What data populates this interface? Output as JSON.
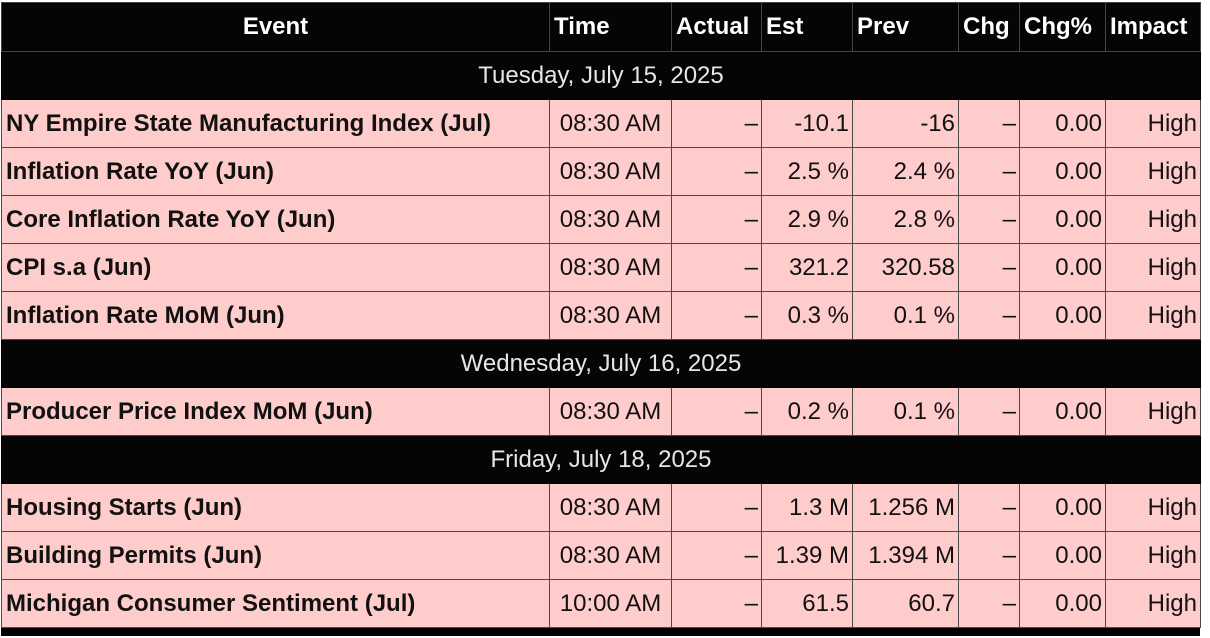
{
  "columns": {
    "event": "Event",
    "time": "Time",
    "actual": "Actual",
    "est": "Est",
    "prev": "Prev",
    "chg": "Chg",
    "chgp": "Chg%",
    "impact": "Impact"
  },
  "groups": [
    {
      "date": "Tuesday, July 15, 2025",
      "rows": [
        {
          "event": "NY Empire State Manufacturing Index (Jul)",
          "time": "08:30 AM",
          "actual": "–",
          "est": "-10.1",
          "prev": "-16",
          "chg": "–",
          "chgp": "0.00",
          "impact": "High"
        },
        {
          "event": "Inflation Rate YoY (Jun)",
          "time": "08:30 AM",
          "actual": "–",
          "est": "2.5 %",
          "prev": "2.4 %",
          "chg": "–",
          "chgp": "0.00",
          "impact": "High"
        },
        {
          "event": "Core Inflation Rate YoY (Jun)",
          "time": "08:30 AM",
          "actual": "–",
          "est": "2.9 %",
          "prev": "2.8 %",
          "chg": "–",
          "chgp": "0.00",
          "impact": "High"
        },
        {
          "event": "CPI s.a (Jun)",
          "time": "08:30 AM",
          "actual": "–",
          "est": "321.2",
          "prev": "320.58",
          "chg": "–",
          "chgp": "0.00",
          "impact": "High"
        },
        {
          "event": "Inflation Rate MoM (Jun)",
          "time": "08:30 AM",
          "actual": "–",
          "est": "0.3 %",
          "prev": "0.1 %",
          "chg": "–",
          "chgp": "0.00",
          "impact": "High"
        }
      ]
    },
    {
      "date": "Wednesday, July 16, 2025",
      "rows": [
        {
          "event": "Producer Price Index MoM (Jun)",
          "time": "08:30 AM",
          "actual": "–",
          "est": "0.2 %",
          "prev": "0.1 %",
          "chg": "–",
          "chgp": "0.00",
          "impact": "High"
        }
      ]
    },
    {
      "date": "Friday, July 18, 2025",
      "rows": [
        {
          "event": "Housing Starts (Jun)",
          "time": "08:30 AM",
          "actual": "–",
          "est": "1.3 M",
          "prev": "1.256 M",
          "chg": "–",
          "chgp": "0.00",
          "impact": "High"
        },
        {
          "event": "Building Permits (Jun)",
          "time": "08:30 AM",
          "actual": "–",
          "est": "1.39 M",
          "prev": "1.394 M",
          "chg": "–",
          "chgp": "0.00",
          "impact": "High"
        },
        {
          "event": "Michigan Consumer Sentiment (Jul)",
          "time": "10:00 AM",
          "actual": "–",
          "est": "61.5",
          "prev": "60.7",
          "chg": "–",
          "chgp": "0.00",
          "impact": "High"
        }
      ]
    }
  ],
  "colors": {
    "header_bg": "#050505",
    "row_bg": "#ffcccc",
    "text": "#111111"
  }
}
